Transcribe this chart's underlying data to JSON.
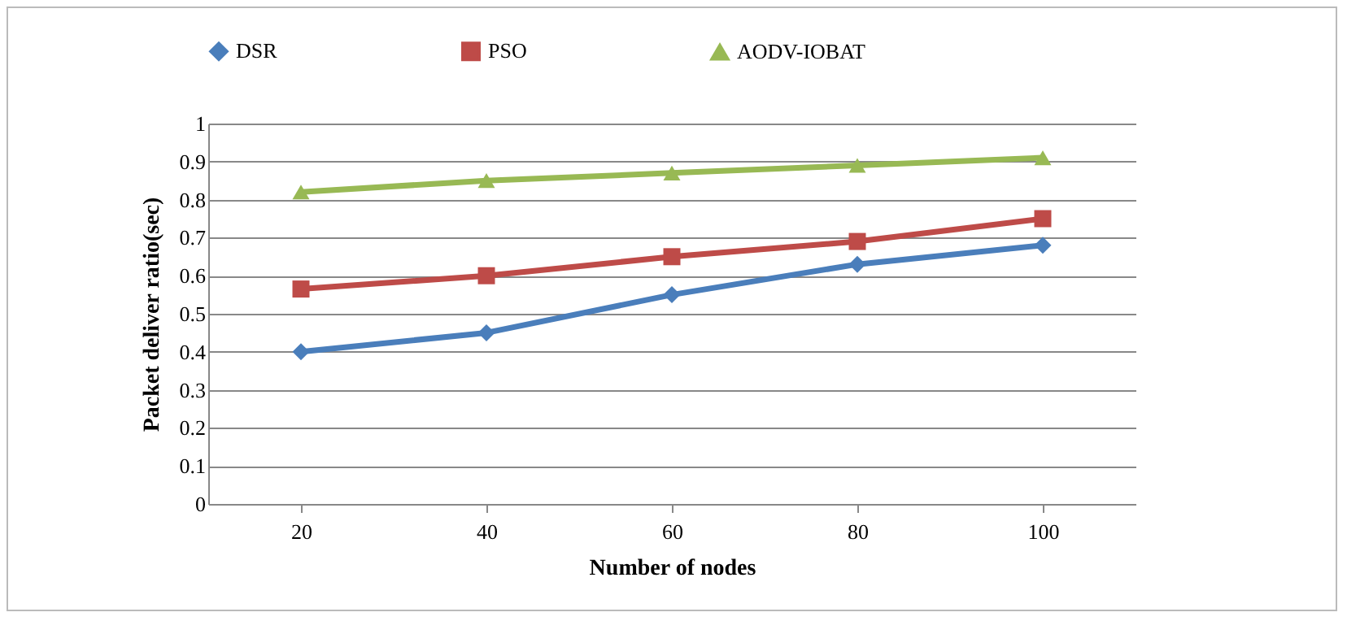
{
  "chart_data": {
    "type": "line",
    "xlabel": "Number of nodes",
    "ylabel": "Packet deliver ratio(sec)",
    "categories": [
      "20",
      "40",
      "60",
      "80",
      "100"
    ],
    "series": [
      {
        "name": "DSR",
        "color": "#4a7ebb",
        "marker": "diamond",
        "values": [
          0.4,
          0.45,
          0.55,
          0.63,
          0.68
        ]
      },
      {
        "name": "PSO",
        "color": "#be4b48",
        "marker": "square",
        "values": [
          0.565,
          0.6,
          0.65,
          0.69,
          0.75
        ]
      },
      {
        "name": "AODV-IOBAT",
        "color": "#98b954",
        "marker": "triangle",
        "values": [
          0.82,
          0.85,
          0.87,
          0.89,
          0.91
        ]
      }
    ],
    "ylim": [
      0,
      1
    ],
    "yticks": [
      0,
      0.1,
      0.2,
      0.3,
      0.4,
      0.5,
      0.6,
      0.7,
      0.8,
      0.9,
      1
    ],
    "grid": "y",
    "legend": "top"
  }
}
